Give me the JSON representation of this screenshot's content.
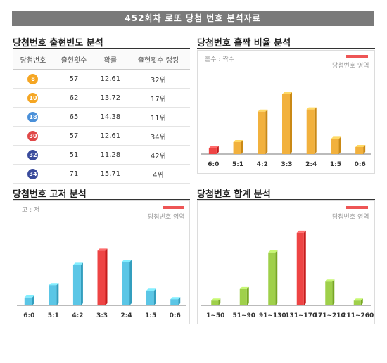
{
  "banner": "452회차 로또 당첨 번호 분석자료",
  "colors": {
    "highlight": "#ee4444",
    "orange": "#f2b13d",
    "blue": "#5bc6e6",
    "green": "#9fd04a"
  },
  "frequency": {
    "title": "당첨번호 출현빈도 분석",
    "headers": [
      "당첨번호",
      "출현횟수",
      "확률",
      "출현횟수 랭킹"
    ],
    "rows": [
      {
        "number": "8",
        "count": "57",
        "prob": "12.61",
        "rank": "32위",
        "color": "#f5a623"
      },
      {
        "number": "10",
        "count": "62",
        "prob": "13.72",
        "rank": "17위",
        "color": "#f5a623"
      },
      {
        "number": "18",
        "count": "65",
        "prob": "14.38",
        "rank": "11위",
        "color": "#4a90d9"
      },
      {
        "number": "30",
        "count": "57",
        "prob": "12.61",
        "rank": "34위",
        "color": "#e04848"
      },
      {
        "number": "32",
        "count": "51",
        "prob": "11.28",
        "rank": "42위",
        "color": "#3a4b9c"
      },
      {
        "number": "34",
        "count": "71",
        "prob": "15.71",
        "rank": "4위",
        "color": "#3a4b9c"
      }
    ]
  },
  "oddeven": {
    "title": "당첨번호 홀짝 비율 분석",
    "note": "홀수 : 짝수",
    "legend": "당첨번호 영역"
  },
  "highlow": {
    "title": "당첨번호 고저 분석",
    "note": "고 : 저",
    "legend": "당첨번호 영역"
  },
  "sum": {
    "title": "당첨번호 합계 분석",
    "note": "",
    "legend": "당첨번호 영역"
  },
  "chart_data": [
    {
      "type": "bar",
      "title": "당첨번호 홀짝 비율 분석",
      "categories": [
        "6:0",
        "5:1",
        "4:2",
        "3:3",
        "2:4",
        "1:5",
        "0:6"
      ],
      "values": [
        1.1,
        2.2,
        7.8,
        11.0,
        8.2,
        2.8,
        1.3
      ],
      "highlight_index": 0,
      "color": "#f2b13d"
    },
    {
      "type": "bar",
      "title": "당첨번호 고저 분석",
      "categories": [
        "6:0",
        "5:1",
        "4:2",
        "3:3",
        "2:4",
        "1:5",
        "0:6"
      ],
      "values": [
        1.4,
        3.6,
        7.2,
        9.7,
        7.7,
        2.6,
        1.1
      ],
      "highlight_index": 3,
      "color": "#5bc6e6"
    },
    {
      "type": "bar",
      "title": "당첨번호 합계 분석",
      "categories": [
        "1~50",
        "51~90",
        "91~130",
        "131~170",
        "171~210",
        "211~260"
      ],
      "values": [
        0.7,
        2.4,
        7.8,
        10.7,
        3.5,
        0.7
      ],
      "highlight_index": 3,
      "color": "#9fd04a"
    }
  ]
}
